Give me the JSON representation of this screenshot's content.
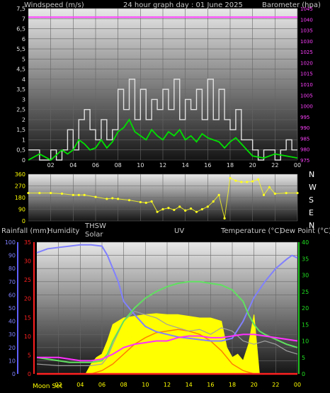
{
  "header": {
    "wind_label": "Windspeed (m/s)",
    "title": "24 hour graph day : 01 June 2025",
    "baro_label": "Barometer (hpa)"
  },
  "directions": [
    "N",
    "W",
    "S",
    "E",
    "N"
  ],
  "bottom_header": {
    "rain": "Rainfall (mm)",
    "humidity": "Humidity",
    "thsw": "THSW",
    "solar": "Solar",
    "uv": "UV",
    "temp": "Temperature (°C)",
    "dew": "Dew Point (°C)"
  },
  "moon_label": "Moon Set",
  "chart_data": [
    {
      "type": "line",
      "title": "24 hour graph day : 01 June 2025",
      "ylabel": "Windspeed (m/s)",
      "y2label": "Barometer (hpa)",
      "x_ticks": [
        "02",
        "04",
        "06",
        "08",
        "10",
        "12",
        "14",
        "16",
        "18",
        "20",
        "22",
        "00"
      ],
      "xlim": [
        0,
        24
      ],
      "ylim": [
        0,
        7.5
      ],
      "y_ticks": [
        "0",
        "0,5",
        "1",
        "1,5",
        "2",
        "2,5",
        "3",
        "3,5",
        "4",
        "4,5",
        "5",
        "5,5",
        "6",
        "6,5",
        "7",
        "7,5"
      ],
      "y2lim": [
        975,
        1045
      ],
      "y2_ticks": [
        "975",
        "980",
        "985",
        "990",
        "995",
        "1000",
        "1005",
        "1010",
        "1015",
        "1020",
        "1025",
        "1030",
        "1035",
        "1040",
        "1045"
      ],
      "series": [
        {
          "name": "Gust",
          "color": "#e0e0e0",
          "x": [
            0,
            1,
            2,
            2.5,
            3,
            3.5,
            4,
            4.5,
            5,
            5.5,
            6,
            6.5,
            7,
            7.5,
            8,
            8.5,
            9,
            9.5,
            10,
            10.5,
            11,
            11.5,
            12,
            12.5,
            13,
            13.5,
            14,
            14.5,
            15,
            15.5,
            16,
            16.5,
            17,
            17.5,
            18,
            18.5,
            19,
            19.5,
            20,
            20.5,
            21,
            21.5,
            22,
            22.5,
            23,
            23.5,
            24
          ],
          "values": [
            0.5,
            0,
            0.5,
            0,
            0.5,
            1.5,
            0.5,
            2,
            2.5,
            1.5,
            1,
            2,
            1,
            1.5,
            3.5,
            2.5,
            4,
            2,
            3.5,
            2,
            3,
            2.5,
            3.5,
            2.5,
            4,
            2,
            3,
            2.5,
            3.5,
            2,
            4,
            2,
            3.5,
            2,
            1.5,
            2.5,
            1,
            1,
            0.5,
            0,
            0.5,
            0.5,
            0,
            0.5,
            1,
            0.5,
            0.5
          ]
        },
        {
          "name": "Wind",
          "color": "#00e000",
          "x": [
            0,
            1,
            2,
            3,
            3.5,
            4,
            4.5,
            5,
            5.5,
            6,
            6.5,
            7,
            7.5,
            8,
            8.5,
            9,
            9.5,
            10,
            10.5,
            11,
            11.5,
            12,
            12.5,
            13,
            13.5,
            14,
            14.5,
            15,
            15.5,
            16,
            16.5,
            17,
            17.5,
            18,
            18.5,
            19,
            19.5,
            20,
            21,
            22,
            23,
            24
          ],
          "values": [
            0,
            0.3,
            0,
            0.5,
            0.3,
            0.5,
            1,
            0.8,
            0.5,
            0.6,
            1,
            0.6,
            0.9,
            1.4,
            1.6,
            2,
            1.4,
            1.2,
            1,
            1.5,
            1.2,
            1,
            1.4,
            1.2,
            1.5,
            1,
            1.2,
            0.9,
            1.3,
            1.1,
            1,
            0.9,
            0.6,
            0.9,
            1.1,
            0.8,
            0.5,
            0.2,
            0.1,
            0.3,
            0.2,
            0.1
          ]
        },
        {
          "name": "Barometer",
          "color": "#ff40ff",
          "x": [
            0,
            24
          ],
          "values": [
            1041,
            1041
          ]
        }
      ]
    },
    {
      "type": "scatter",
      "ylabel": "Wind direction",
      "x_ticks": [
        "02",
        "04",
        "06",
        "08",
        "10",
        "12",
        "14",
        "16",
        "18",
        "20",
        "22",
        "00"
      ],
      "xlim": [
        0,
        24
      ],
      "ylim": [
        0,
        360
      ],
      "y_ticks": [
        "0",
        "90",
        "180",
        "270",
        "360"
      ],
      "series": [
        {
          "name": "Wind direction",
          "color": "#ffff20",
          "x": [
            0,
            1,
            2,
            3,
            4,
            4.5,
            5,
            6,
            7,
            7.5,
            8,
            9,
            10,
            10.5,
            11,
            11.5,
            12,
            12.5,
            13,
            13.5,
            14,
            14.5,
            15,
            15.5,
            16,
            16.5,
            17,
            17.5,
            18,
            18.5,
            19,
            19.5,
            20,
            20.5,
            21,
            21.5,
            22,
            23,
            24
          ],
          "values": [
            215,
            215,
            215,
            210,
            200,
            200,
            200,
            185,
            170,
            175,
            170,
            160,
            145,
            140,
            150,
            70,
            90,
            100,
            85,
            110,
            80,
            95,
            70,
            90,
            110,
            150,
            200,
            20,
            330,
            310,
            300,
            300,
            305,
            320,
            200,
            260,
            210,
            215,
            215
          ]
        }
      ]
    },
    {
      "type": "line",
      "y_axes": {
        "rain": {
          "label": "Rainfall (mm)",
          "ylim": [
            0,
            35
          ]
        },
        "humidity": {
          "label": "Humidity",
          "ylim": [
            0,
            100
          ]
        },
        "temp": {
          "label": "Temperature (°C)",
          "ylim": [
            0,
            40
          ]
        }
      },
      "humidity_ticks": [
        "0",
        "10",
        "20",
        "30",
        "40",
        "50",
        "60",
        "70",
        "80",
        "90",
        "100"
      ],
      "rain_ticks": [
        "0",
        "5",
        "10",
        "15",
        "20",
        "25",
        "30",
        "35"
      ],
      "temp_ticks": [
        "0",
        "5",
        "10",
        "15",
        "20",
        "25",
        "30",
        "35",
        "40"
      ],
      "x_ticks": [
        "02",
        "04",
        "06",
        "08",
        "10",
        "12",
        "14",
        "16",
        "18",
        "20",
        "22",
        "00"
      ],
      "xlim": [
        0,
        24
      ],
      "series": [
        {
          "name": "Humidity",
          "color": "#8080ff",
          "axis": "humidity",
          "x": [
            0,
            1,
            2,
            3,
            4,
            5,
            6,
            6.5,
            7,
            7.5,
            8,
            9,
            10,
            11,
            12,
            13,
            14,
            15,
            16,
            17,
            18,
            19,
            20,
            21,
            22,
            23,
            23.5,
            24
          ],
          "values": [
            92,
            95,
            96,
            97,
            98,
            98,
            97,
            90,
            80,
            70,
            55,
            45,
            36,
            32,
            30,
            28,
            27,
            26,
            25,
            25,
            27,
            40,
            58,
            70,
            80,
            87,
            90,
            88
          ]
        },
        {
          "name": "Temperature",
          "color": "#60e060",
          "axis": "temp",
          "x": [
            0,
            1,
            2,
            3,
            4,
            5,
            6,
            6.5,
            7,
            8,
            9,
            10,
            11,
            12,
            13,
            14,
            15,
            16,
            17,
            18,
            19,
            19.5,
            20,
            20.5,
            21,
            22,
            23,
            24
          ],
          "values": [
            5,
            4.5,
            4,
            3.5,
            3.5,
            3.5,
            4,
            6,
            10,
            16,
            20,
            23,
            25,
            26.5,
            27.5,
            28,
            28,
            27.5,
            27,
            25.5,
            22,
            18,
            15,
            13,
            12,
            10.5,
            9,
            8
          ]
        },
        {
          "name": "Dew Point",
          "color": "#ff30ff",
          "axis": "temp",
          "x": [
            0,
            2,
            4,
            5,
            6,
            7,
            8,
            9,
            10,
            11,
            12,
            13,
            14,
            15,
            16,
            17,
            18,
            19,
            20,
            21,
            22,
            23,
            24
          ],
          "values": [
            5,
            5,
            4,
            4,
            4.5,
            6,
            8,
            9,
            9.5,
            10,
            10,
            11,
            11.5,
            11.5,
            11,
            11,
            11.5,
            12,
            12,
            11.5,
            11,
            10.5,
            10
          ]
        },
        {
          "name": "THSW",
          "color": "#a0a0a0",
          "axis": "temp",
          "x": [
            0,
            2,
            4,
            5,
            6,
            6.5,
            7,
            8,
            9,
            10,
            11,
            12,
            13,
            14,
            15,
            16,
            17,
            18,
            19,
            20,
            21,
            22,
            23,
            24
          ],
          "values": [
            3,
            2.5,
            2.5,
            2.5,
            3,
            5,
            9,
            16,
            19,
            18,
            17,
            15,
            14,
            13,
            13.5,
            12,
            14,
            13,
            10,
            9,
            10,
            9,
            7,
            6
          ]
        },
        {
          "name": "Solar",
          "color": "#ffff00",
          "axis": "temp",
          "x": [
            0,
            4.5,
            5,
            5.5,
            6,
            6.5,
            7,
            8,
            9,
            10,
            11,
            12,
            13,
            14,
            15,
            16,
            17,
            17.5,
            18,
            18.5,
            19,
            19.5,
            20,
            20.5,
            24
          ],
          "values": [
            0,
            0,
            3,
            5,
            6,
            10,
            15,
            17,
            17.5,
            18,
            18.3,
            18,
            18,
            17.5,
            17,
            17,
            16,
            8,
            5,
            6,
            4,
            9,
            18,
            0,
            0
          ]
        },
        {
          "name": "UV",
          "color": "#ff8000",
          "axis": "temp",
          "x": [
            0,
            5,
            6,
            7,
            8,
            9,
            10,
            11,
            12,
            13,
            14,
            15,
            16,
            17,
            18,
            19,
            20,
            24
          ],
          "values": [
            0,
            0,
            1,
            3,
            6,
            9,
            11,
            12.5,
            13,
            13.5,
            13,
            12,
            10,
            7,
            3,
            1,
            0,
            0
          ]
        },
        {
          "name": "Rainfall",
          "color": "#ff2020",
          "axis": "rain",
          "x": [
            0,
            24
          ],
          "values": [
            0,
            0
          ]
        }
      ]
    }
  ]
}
